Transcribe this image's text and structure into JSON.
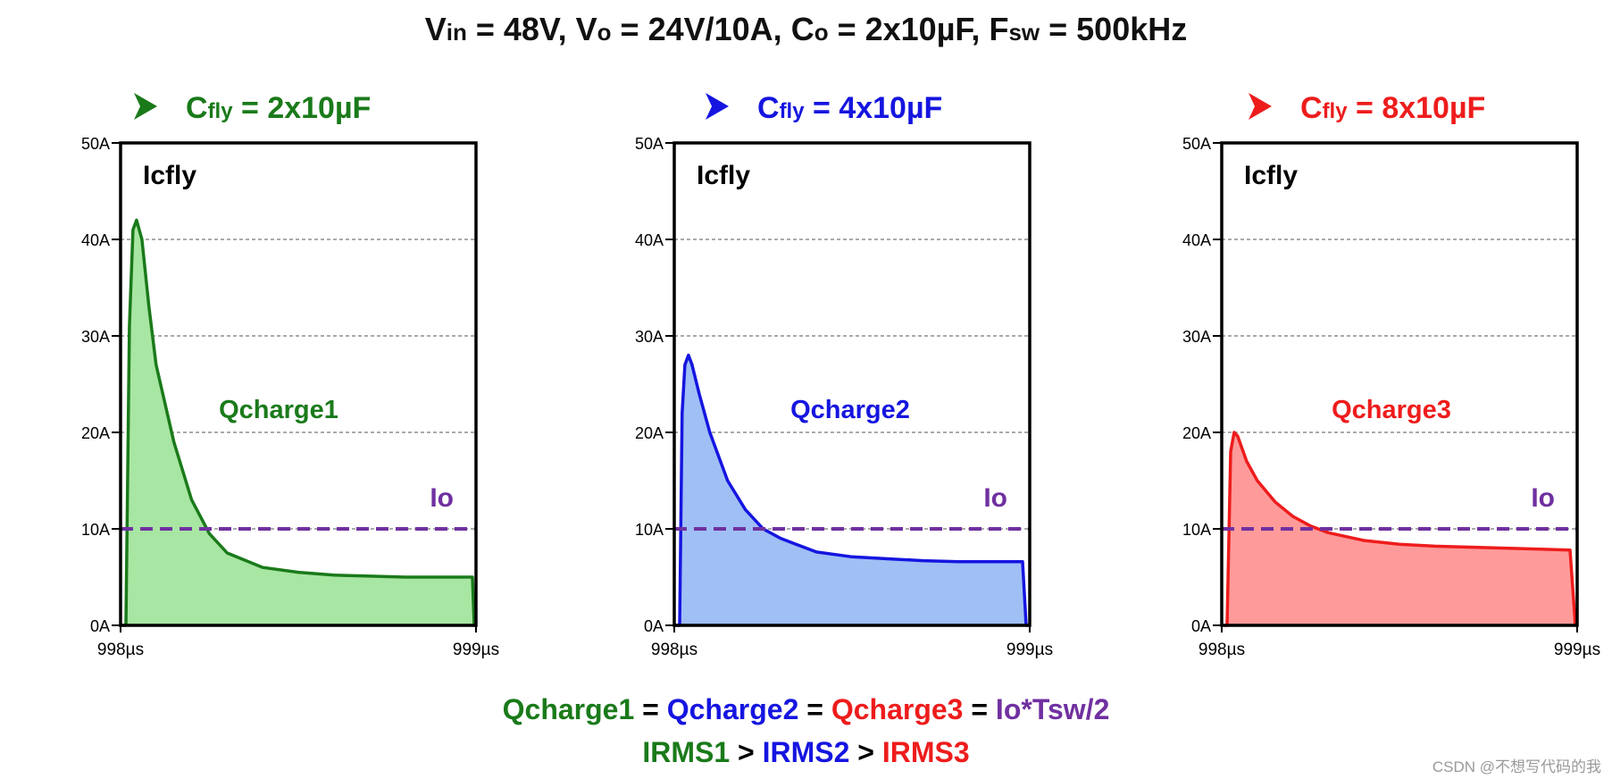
{
  "title": {
    "v": "V",
    "v_sub": "in",
    "p1": " = 48V, ",
    "vo": "V",
    "vo_sub": "o",
    "p2": " = 24V/10A, ",
    "co": "C",
    "co_sub": "o",
    "p3": " = 2x10µF, ",
    "f": "F",
    "f_sub": "sw",
    "p4": " = 500kHz"
  },
  "colors": {
    "green": "#1a7a1a",
    "blue": "#1515e0",
    "red": "#ee1c1c",
    "purple": "#7030a0"
  },
  "chart_data": [
    {
      "type": "area",
      "title_main": "C",
      "title_sub": "fly",
      "title_rest": " = 2x10µF",
      "signal_label": "Icfly",
      "area_label": "Qcharge1",
      "io_label": "Io",
      "io_value": 10,
      "x_ticks": [
        "998µs",
        "999µs"
      ],
      "y_ticks": [
        "0A",
        "10A",
        "20A",
        "30A",
        "40A",
        "50A"
      ],
      "ylim": [
        0,
        50
      ],
      "xlim": [
        0,
        1
      ],
      "line_color": "#1a7a1a",
      "fill_color": "#a8e6a3",
      "x": [
        0,
        0.015,
        0.025,
        0.035,
        0.045,
        0.06,
        0.08,
        0.1,
        0.15,
        0.2,
        0.25,
        0.3,
        0.4,
        0.5,
        0.6,
        0.7,
        0.8,
        0.9,
        0.99,
        0.995,
        1.0
      ],
      "y": [
        0,
        0,
        31,
        41,
        42,
        40,
        33,
        27,
        19,
        13,
        9.5,
        7.5,
        6,
        5.5,
        5.2,
        5.1,
        5,
        5,
        5,
        0,
        0
      ]
    },
    {
      "type": "area",
      "title_main": "C",
      "title_sub": "fly",
      "title_rest": " = 4x10µF",
      "signal_label": "Icfly",
      "area_label": "Qcharge2",
      "io_label": "Io",
      "io_value": 10,
      "x_ticks": [
        "998µs",
        "999µs"
      ],
      "y_ticks": [
        "0A",
        "10A",
        "20A",
        "30A",
        "40A",
        "50A"
      ],
      "ylim": [
        0,
        50
      ],
      "xlim": [
        0,
        1
      ],
      "line_color": "#1515e0",
      "fill_color": "#9fbff5",
      "x": [
        0,
        0.015,
        0.022,
        0.03,
        0.04,
        0.05,
        0.07,
        0.1,
        0.15,
        0.2,
        0.25,
        0.3,
        0.4,
        0.5,
        0.6,
        0.7,
        0.8,
        0.9,
        0.98,
        0.99,
        1.0
      ],
      "y": [
        0,
        0,
        22,
        27,
        28,
        27,
        24,
        20,
        15,
        12,
        10,
        9,
        7.6,
        7.1,
        6.9,
        6.7,
        6.6,
        6.6,
        6.6,
        0,
        0
      ]
    },
    {
      "type": "area",
      "title_main": "C",
      "title_sub": "fly",
      "title_rest": " = 8x10µF",
      "signal_label": "Icfly",
      "area_label": "Qcharge3",
      "io_label": "Io",
      "io_value": 10,
      "x_ticks": [
        "998µs",
        "999µs"
      ],
      "y_ticks": [
        "0A",
        "10A",
        "20A",
        "30A",
        "40A",
        "50A"
      ],
      "ylim": [
        0,
        50
      ],
      "xlim": [
        0,
        1
      ],
      "line_color": "#ee1c1c",
      "fill_color": "#ff9a9a",
      "x": [
        0,
        0.015,
        0.025,
        0.035,
        0.045,
        0.07,
        0.1,
        0.15,
        0.2,
        0.25,
        0.3,
        0.4,
        0.5,
        0.6,
        0.7,
        0.8,
        0.9,
        0.98,
        0.995,
        1.0
      ],
      "y": [
        0,
        0,
        18,
        20,
        19.6,
        17,
        15,
        12.8,
        11.3,
        10.3,
        9.6,
        8.8,
        8.4,
        8.2,
        8.1,
        8,
        7.9,
        7.8,
        0,
        0
      ]
    }
  ],
  "formula1": {
    "q1": "Qcharge1",
    "eq1": " = ",
    "q2": "Qcharge2",
    "eq2": " = ",
    "q3": "Qcharge3",
    "eq3": " = ",
    "io": "Io*Tsw/2"
  },
  "formula2": {
    "r1": "IRMS1",
    "gt1": " > ",
    "r2": "IRMS2",
    "gt2": " > ",
    "r3": "IRMS3"
  },
  "watermark": "CSDN @不想写代码的我"
}
